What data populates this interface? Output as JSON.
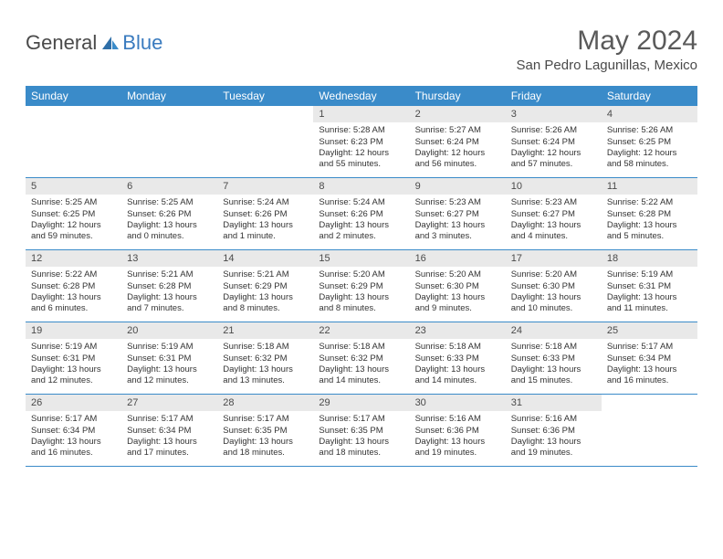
{
  "brand": {
    "part1": "General",
    "part2": "Blue"
  },
  "title": "May 2024",
  "location": "San Pedro Lagunillas, Mexico",
  "colors": {
    "header_bar": "#3a8bc9",
    "daynum_bg": "#e9e9e9",
    "rule": "#3a8bc9",
    "text": "#333333",
    "title_text": "#5a5a5a"
  },
  "dow": [
    "Sunday",
    "Monday",
    "Tuesday",
    "Wednesday",
    "Thursday",
    "Friday",
    "Saturday"
  ],
  "weeks": [
    [
      null,
      null,
      null,
      {
        "n": "1",
        "sr": "5:28 AM",
        "ss": "6:23 PM",
        "dl": "12 hours and 55 minutes."
      },
      {
        "n": "2",
        "sr": "5:27 AM",
        "ss": "6:24 PM",
        "dl": "12 hours and 56 minutes."
      },
      {
        "n": "3",
        "sr": "5:26 AM",
        "ss": "6:24 PM",
        "dl": "12 hours and 57 minutes."
      },
      {
        "n": "4",
        "sr": "5:26 AM",
        "ss": "6:25 PM",
        "dl": "12 hours and 58 minutes."
      }
    ],
    [
      {
        "n": "5",
        "sr": "5:25 AM",
        "ss": "6:25 PM",
        "dl": "12 hours and 59 minutes."
      },
      {
        "n": "6",
        "sr": "5:25 AM",
        "ss": "6:26 PM",
        "dl": "13 hours and 0 minutes."
      },
      {
        "n": "7",
        "sr": "5:24 AM",
        "ss": "6:26 PM",
        "dl": "13 hours and 1 minute."
      },
      {
        "n": "8",
        "sr": "5:24 AM",
        "ss": "6:26 PM",
        "dl": "13 hours and 2 minutes."
      },
      {
        "n": "9",
        "sr": "5:23 AM",
        "ss": "6:27 PM",
        "dl": "13 hours and 3 minutes."
      },
      {
        "n": "10",
        "sr": "5:23 AM",
        "ss": "6:27 PM",
        "dl": "13 hours and 4 minutes."
      },
      {
        "n": "11",
        "sr": "5:22 AM",
        "ss": "6:28 PM",
        "dl": "13 hours and 5 minutes."
      }
    ],
    [
      {
        "n": "12",
        "sr": "5:22 AM",
        "ss": "6:28 PM",
        "dl": "13 hours and 6 minutes."
      },
      {
        "n": "13",
        "sr": "5:21 AM",
        "ss": "6:28 PM",
        "dl": "13 hours and 7 minutes."
      },
      {
        "n": "14",
        "sr": "5:21 AM",
        "ss": "6:29 PM",
        "dl": "13 hours and 8 minutes."
      },
      {
        "n": "15",
        "sr": "5:20 AM",
        "ss": "6:29 PM",
        "dl": "13 hours and 8 minutes."
      },
      {
        "n": "16",
        "sr": "5:20 AM",
        "ss": "6:30 PM",
        "dl": "13 hours and 9 minutes."
      },
      {
        "n": "17",
        "sr": "5:20 AM",
        "ss": "6:30 PM",
        "dl": "13 hours and 10 minutes."
      },
      {
        "n": "18",
        "sr": "5:19 AM",
        "ss": "6:31 PM",
        "dl": "13 hours and 11 minutes."
      }
    ],
    [
      {
        "n": "19",
        "sr": "5:19 AM",
        "ss": "6:31 PM",
        "dl": "13 hours and 12 minutes."
      },
      {
        "n": "20",
        "sr": "5:19 AM",
        "ss": "6:31 PM",
        "dl": "13 hours and 12 minutes."
      },
      {
        "n": "21",
        "sr": "5:18 AM",
        "ss": "6:32 PM",
        "dl": "13 hours and 13 minutes."
      },
      {
        "n": "22",
        "sr": "5:18 AM",
        "ss": "6:32 PM",
        "dl": "13 hours and 14 minutes."
      },
      {
        "n": "23",
        "sr": "5:18 AM",
        "ss": "6:33 PM",
        "dl": "13 hours and 14 minutes."
      },
      {
        "n": "24",
        "sr": "5:18 AM",
        "ss": "6:33 PM",
        "dl": "13 hours and 15 minutes."
      },
      {
        "n": "25",
        "sr": "5:17 AM",
        "ss": "6:34 PM",
        "dl": "13 hours and 16 minutes."
      }
    ],
    [
      {
        "n": "26",
        "sr": "5:17 AM",
        "ss": "6:34 PM",
        "dl": "13 hours and 16 minutes."
      },
      {
        "n": "27",
        "sr": "5:17 AM",
        "ss": "6:34 PM",
        "dl": "13 hours and 17 minutes."
      },
      {
        "n": "28",
        "sr": "5:17 AM",
        "ss": "6:35 PM",
        "dl": "13 hours and 18 minutes."
      },
      {
        "n": "29",
        "sr": "5:17 AM",
        "ss": "6:35 PM",
        "dl": "13 hours and 18 minutes."
      },
      {
        "n": "30",
        "sr": "5:16 AM",
        "ss": "6:36 PM",
        "dl": "13 hours and 19 minutes."
      },
      {
        "n": "31",
        "sr": "5:16 AM",
        "ss": "6:36 PM",
        "dl": "13 hours and 19 minutes."
      },
      null
    ]
  ],
  "labels": {
    "sunrise": "Sunrise: ",
    "sunset": "Sunset: ",
    "daylight": "Daylight: "
  }
}
